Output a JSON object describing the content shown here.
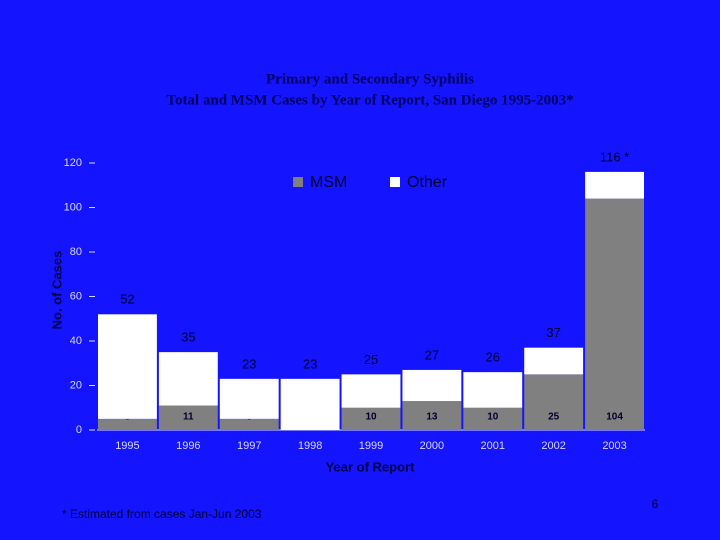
{
  "chart_data": {
    "type": "stacked_bar",
    "title": "Primary and Secondary Syphilis",
    "subtitle": "Total and MSM Cases by Year of Report, San Diego 1995-2003*",
    "x_label": "Year of Report",
    "y_label": "No. of Cases",
    "categories": [
      "1995",
      "1996",
      "1997",
      "1998",
      "1999",
      "2000",
      "2001",
      "2002",
      "2003"
    ],
    "series": [
      {
        "name": "MSM",
        "color": "#808080",
        "values": [
          5,
          11,
          5,
          0,
          10,
          13,
          10,
          25,
          104
        ],
        "value_labels": [
          "5",
          "11",
          "5",
          null,
          "10",
          "13",
          "10",
          "25",
          "104"
        ]
      },
      {
        "name": "Other",
        "color": "#ffffff",
        "values": [
          47,
          24,
          18,
          23,
          15,
          14,
          16,
          12,
          12
        ]
      }
    ],
    "totals": {
      "values": [
        52,
        35,
        23,
        23,
        25,
        27,
        26,
        37,
        116
      ],
      "value_labels": [
        "52",
        "35",
        "23",
        "23",
        "25",
        "27",
        "26",
        "37",
        "116 *"
      ]
    },
    "ylim": [
      0,
      120
    ],
    "yticks": [
      0,
      20,
      40,
      60,
      80,
      100,
      120
    ],
    "legend": "top",
    "footnote": "* Estimated from cases Jan-Jun 2003",
    "page_number": "6"
  }
}
